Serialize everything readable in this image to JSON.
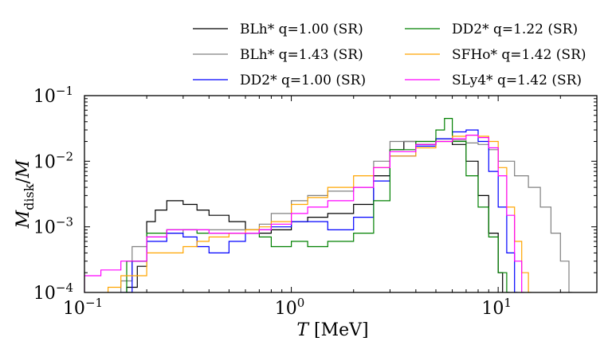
{
  "chart_data": {
    "type": "line",
    "xscale": "log",
    "yscale": "log",
    "xlim": [
      0.1,
      30
    ],
    "ylim": [
      0.0001,
      0.1
    ],
    "xlabel": "T [MeV]",
    "ylabel": "M_disk/M",
    "xticks": [
      {
        "value": 0.1,
        "base": "10",
        "exp": "−1"
      },
      {
        "value": 1,
        "base": "10",
        "exp": "0"
      },
      {
        "value": 10,
        "base": "10",
        "exp": "1"
      }
    ],
    "yticks": [
      {
        "value": 0.1,
        "base": "10",
        "exp": "−1"
      },
      {
        "value": 0.01,
        "base": "10",
        "exp": "−2"
      },
      {
        "value": 0.001,
        "base": "10",
        "exp": "−3"
      },
      {
        "value": 0.0001,
        "base": "10",
        "exp": "−4"
      }
    ],
    "legend_position": "top",
    "series": [
      {
        "name": "BLh* q=1.00 (SR)",
        "color": "#000000",
        "x": [
          0.13,
          0.16,
          0.18,
          0.2,
          0.22,
          0.25,
          0.3,
          0.35,
          0.4,
          0.5,
          0.6,
          0.7,
          0.8,
          1.0,
          1.2,
          1.5,
          2.0,
          2.5,
          3.0,
          3.5,
          4.0,
          5.0,
          6.0,
          7.0,
          8.0,
          9.0,
          10.0,
          10.5
        ],
        "y": [
          5e-05,
          0.00012,
          0.00025,
          0.0012,
          0.0018,
          0.0025,
          0.0022,
          0.0018,
          0.0015,
          0.0012,
          0.0009,
          0.0008,
          0.0009,
          0.0012,
          0.0014,
          0.0016,
          0.0022,
          0.006,
          0.015,
          0.02,
          0.018,
          0.022,
          0.018,
          0.01,
          0.003,
          0.0008,
          0.0002,
          5e-05
        ]
      },
      {
        "name": "BLh* q=1.43 (SR)",
        "color": "#808080",
        "x": [
          0.15,
          0.17,
          0.2,
          0.25,
          0.3,
          0.4,
          0.5,
          0.6,
          0.7,
          0.8,
          1.0,
          1.2,
          1.5,
          2.0,
          2.5,
          3.0,
          4.0,
          5.0,
          6.0,
          7.0,
          8.0,
          9.0,
          10.0,
          12.0,
          14.0,
          16.0,
          18.0,
          20.0,
          22.0
        ],
        "y": [
          0.00015,
          0.0005,
          0.0007,
          0.0008,
          0.0009,
          0.0009,
          0.0009,
          0.0009,
          0.0011,
          0.0016,
          0.0025,
          0.003,
          0.0035,
          0.004,
          0.01,
          0.02,
          0.02,
          0.02,
          0.021,
          0.019,
          0.018,
          0.015,
          0.01,
          0.006,
          0.004,
          0.002,
          0.0008,
          0.0003,
          0.0001
        ]
      },
      {
        "name": "DD2* q=1.00 (SR)",
        "color": "#0000ff",
        "x": [
          0.15,
          0.17,
          0.2,
          0.25,
          0.3,
          0.35,
          0.4,
          0.5,
          0.6,
          0.7,
          0.8,
          1.0,
          1.2,
          1.5,
          2.0,
          2.5,
          3.0,
          4.0,
          5.0,
          6.0,
          7.0,
          8.0,
          9.0,
          10.0,
          11.0,
          12.0
        ],
        "y": [
          0.0001,
          0.0003,
          0.0006,
          0.0008,
          0.0007,
          0.0005,
          0.0004,
          0.0006,
          0.0008,
          0.0009,
          0.001,
          0.0012,
          0.0012,
          0.0009,
          0.0014,
          0.005,
          0.012,
          0.017,
          0.022,
          0.028,
          0.03,
          0.02,
          0.007,
          0.002,
          0.0004,
          0.0001
        ]
      },
      {
        "name": "DD2* q=1.22 (SR)",
        "color": "#008000",
        "x": [
          0.14,
          0.16,
          0.2,
          0.25,
          0.3,
          0.35,
          0.4,
          0.5,
          0.6,
          0.7,
          0.8,
          1.0,
          1.2,
          1.5,
          2.0,
          2.5,
          3.0,
          4.0,
          5.0,
          5.5,
          6.0,
          7.0,
          8.0,
          9.0,
          10.0,
          11.0
        ],
        "y": [
          8e-05,
          0.0003,
          0.0008,
          0.0009,
          0.0009,
          0.0008,
          0.0008,
          0.0008,
          0.0008,
          0.0007,
          0.0005,
          0.0006,
          0.0005,
          0.0006,
          0.0008,
          0.0025,
          0.015,
          0.02,
          0.03,
          0.045,
          0.02,
          0.006,
          0.002,
          0.0007,
          0.0002,
          0.0001
        ]
      },
      {
        "name": "SFHo* q=1.42 (SR)",
        "color": "#ffa500",
        "x": [
          0.13,
          0.15,
          0.2,
          0.22,
          0.25,
          0.3,
          0.35,
          0.4,
          0.5,
          0.6,
          0.7,
          0.8,
          1.0,
          1.2,
          1.5,
          2.0,
          2.5,
          3.0,
          4.0,
          5.0,
          6.0,
          7.0,
          8.0,
          9.0,
          10.0,
          11.0,
          12.0,
          13.0,
          14.0
        ],
        "y": [
          0.00012,
          0.00018,
          0.0004,
          0.0004,
          0.0004,
          0.0005,
          0.0006,
          0.0007,
          0.0008,
          0.0009,
          0.001,
          0.0012,
          0.0022,
          0.0028,
          0.004,
          0.006,
          0.008,
          0.012,
          0.016,
          0.02,
          0.024,
          0.025,
          0.024,
          0.02,
          0.008,
          0.002,
          0.0006,
          0.0002,
          0.0001
        ]
      },
      {
        "name": "SLy4* q=1.42 (SR)",
        "color": "#ff00ff",
        "x": [
          0.1,
          0.12,
          0.15,
          0.2,
          0.25,
          0.3,
          0.4,
          0.5,
          0.6,
          0.7,
          0.8,
          1.0,
          1.2,
          1.5,
          2.0,
          2.5,
          3.0,
          4.0,
          5.0,
          6.0,
          7.0,
          8.0,
          9.0,
          10.0,
          11.0,
          12.0,
          13.0
        ],
        "y": [
          0.00018,
          0.00022,
          0.0003,
          0.0007,
          0.0009,
          0.0009,
          0.0008,
          0.0008,
          0.0008,
          0.0009,
          0.0011,
          0.0016,
          0.002,
          0.0025,
          0.004,
          0.008,
          0.014,
          0.018,
          0.02,
          0.022,
          0.025,
          0.023,
          0.016,
          0.006,
          0.0015,
          0.0003,
          0.0001
        ]
      }
    ]
  }
}
